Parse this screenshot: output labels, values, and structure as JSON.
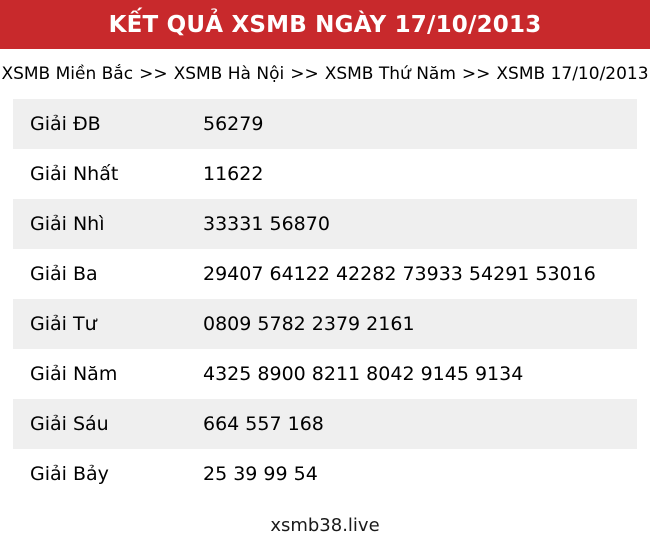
{
  "header": {
    "title": "KẾT QUẢ XSMB NGÀY 17/10/2013"
  },
  "breadcrumb": {
    "separator": ">>",
    "items": [
      {
        "label": "XSMB Miền Bắc"
      },
      {
        "label": "XSMB Hà Nội"
      },
      {
        "label": "XSMB Thứ Năm"
      },
      {
        "label": "XSMB 17/10/2013"
      }
    ]
  },
  "results": {
    "rows": [
      {
        "label": "Giải ĐB",
        "numbers": "56279"
      },
      {
        "label": "Giải Nhất",
        "numbers": "11622"
      },
      {
        "label": "Giải Nhì",
        "numbers": "33331 56870"
      },
      {
        "label": "Giải Ba",
        "numbers": "29407 64122 42282 73933 54291 53016"
      },
      {
        "label": "Giải Tư",
        "numbers": "0809 5782 2379 2161"
      },
      {
        "label": "Giải Năm",
        "numbers": "4325 8900 8211 8042 9145 9134"
      },
      {
        "label": "Giải Sáu",
        "numbers": "664 557 168"
      },
      {
        "label": "Giải Bảy",
        "numbers": "25 39 99 54"
      }
    ]
  },
  "footer": {
    "site": "xsmb38.live"
  },
  "colors": {
    "header_bg": "#c8292c",
    "header_text": "#ffffff",
    "row_alt_bg": "#efefef",
    "text": "#000000"
  }
}
